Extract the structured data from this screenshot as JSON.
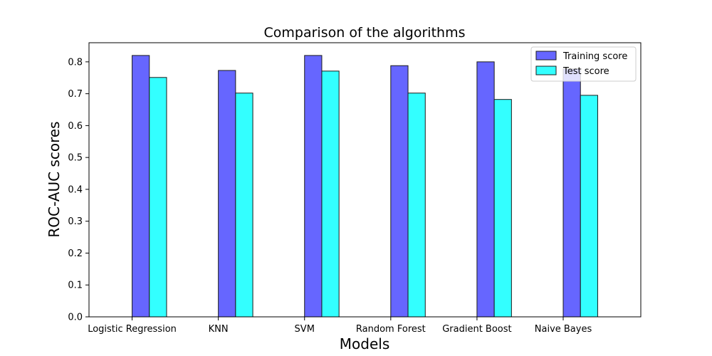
{
  "chart_data": {
    "type": "bar",
    "title": "Comparison of the algorithms",
    "xlabel": "Models",
    "ylabel": "ROC-AUC scores",
    "categories": [
      "Logistic Regression",
      "KNN",
      "SVM",
      "Random Forest",
      "Gradient Boost",
      "Naive Bayes"
    ],
    "series": [
      {
        "name": "Training score",
        "values": [
          0.82,
          0.773,
          0.82,
          0.788,
          0.8,
          0.778
        ],
        "color": "#6666ff"
      },
      {
        "name": "Test score",
        "values": [
          0.751,
          0.702,
          0.771,
          0.702,
          0.682,
          0.695
        ],
        "color": "#33ffff"
      }
    ],
    "ylim": [
      0,
      0.86
    ],
    "yticks": [
      "0.0",
      "0.1",
      "0.2",
      "0.3",
      "0.4",
      "0.5",
      "0.6",
      "0.7",
      "0.8"
    ],
    "grid": false,
    "legend": "top-right"
  }
}
